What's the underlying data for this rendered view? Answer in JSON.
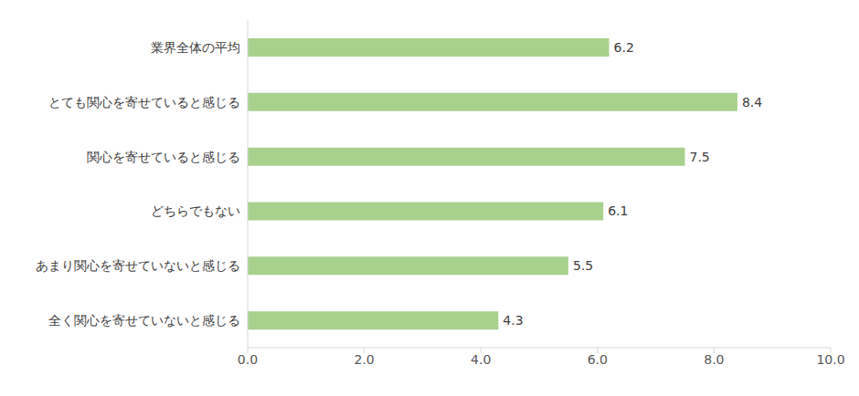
{
  "chart_data": {
    "type": "bar",
    "orientation": "horizontal",
    "categories": [
      "業界全体の平均",
      "とても関心を寄せていると感じる",
      "関心を寄せていると感じる",
      "どちらでもない",
      "あまり関心を寄せていないと感じる",
      "全く関心を寄せていないと感じる"
    ],
    "values": [
      6.2,
      8.4,
      7.5,
      6.1,
      5.5,
      4.3
    ],
    "color": "#a9d18e",
    "xlim": [
      0,
      10
    ],
    "xticks": [
      {
        "value": 0,
        "label": "0.0"
      },
      {
        "value": 2,
        "label": "2.0"
      },
      {
        "value": 4,
        "label": "4.0"
      },
      {
        "value": 6,
        "label": "6.0"
      },
      {
        "value": 8,
        "label": "8.0"
      },
      {
        "value": 10,
        "label": "10.0"
      }
    ],
    "grid": false,
    "data_labels": true
  }
}
